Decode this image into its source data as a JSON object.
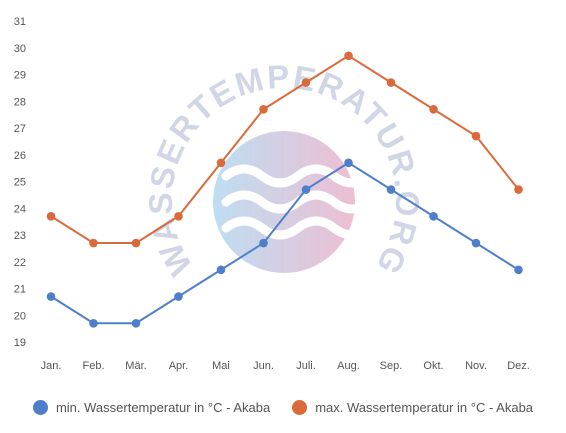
{
  "chart_data": {
    "type": "line",
    "categories": [
      "Jan.",
      "Feb.",
      "Mär.",
      "Apr.",
      "Mai",
      "Jun.",
      "Juli.",
      "Aug.",
      "Sep.",
      "Okt.",
      "Nov.",
      "Dez."
    ],
    "series": [
      {
        "name": "min. Wassertemperatur in °C - Akaba",
        "color": "#4f7fcb",
        "values": [
          20.7,
          19.7,
          19.7,
          20.7,
          21.7,
          22.7,
          24.7,
          25.7,
          24.7,
          23.7,
          22.7,
          21.7
        ]
      },
      {
        "name": "max. Wassertemperatur in °C - Akaba",
        "color": "#db6a3a",
        "values": [
          23.7,
          22.7,
          22.7,
          23.7,
          25.7,
          27.7,
          28.7,
          29.7,
          28.7,
          27.7,
          26.7,
          24.7
        ]
      }
    ],
    "y_ticks": [
      19,
      20,
      21,
      22,
      23,
      24,
      25,
      26,
      27,
      28,
      29,
      30,
      31
    ],
    "ylim": [
      19,
      31
    ],
    "grid": false,
    "legend_position": "bottom"
  },
  "watermark": {
    "text": "WASSERTEMPERATUR.ORG",
    "icon": "waves-logo-icon"
  }
}
